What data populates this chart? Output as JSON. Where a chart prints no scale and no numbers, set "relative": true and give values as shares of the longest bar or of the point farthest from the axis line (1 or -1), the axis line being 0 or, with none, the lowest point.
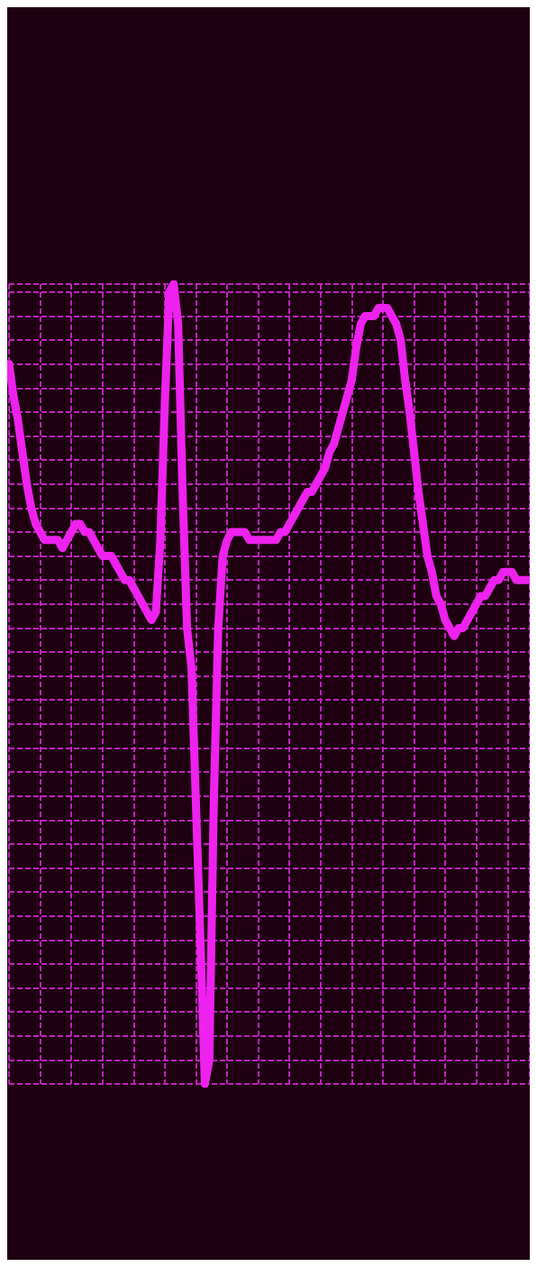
{
  "chart_data": {
    "type": "line",
    "relative": true,
    "grid": true,
    "line_style": "solid",
    "categories": [
      null,
      null,
      null,
      null,
      null,
      null,
      null,
      null,
      null,
      null,
      null,
      null,
      null,
      null,
      null,
      null,
      null,
      null,
      null,
      null,
      null,
      null,
      null,
      null,
      null,
      null,
      null,
      null,
      null,
      null,
      null,
      null,
      null,
      null,
      null,
      null,
      null,
      null,
      null,
      null,
      null,
      null,
      null,
      null,
      null,
      null,
      null,
      null,
      null,
      null,
      null,
      null,
      null,
      null,
      null,
      null,
      null,
      null,
      null,
      null,
      null,
      null,
      null,
      null,
      null,
      null,
      null,
      null,
      null,
      null,
      null,
      null,
      null,
      null,
      null,
      null,
      null,
      null,
      null,
      null,
      null,
      null,
      null,
      null,
      null,
      null,
      null,
      null,
      null,
      null,
      null,
      null,
      null,
      null,
      null,
      null,
      null,
      null,
      null,
      null,
      null,
      null,
      null,
      null,
      null,
      null,
      null,
      null,
      null,
      null,
      null,
      null,
      null,
      null,
      null,
      null,
      null,
      null
    ],
    "series": [
      {
        "color": "#ee22ee",
        "values": [
          0.9,
          0.86,
          0.83,
          0.79,
          0.75,
          0.72,
          0.7,
          0.69,
          0.68,
          0.68,
          0.68,
          0.68,
          0.67,
          0.68,
          0.69,
          0.7,
          0.7,
          0.69,
          0.69,
          0.68,
          0.67,
          0.66,
          0.66,
          0.66,
          0.65,
          0.64,
          0.63,
          0.63,
          0.62,
          0.61,
          0.6,
          0.59,
          0.58,
          0.59,
          0.68,
          0.85,
          0.99,
          1.0,
          0.95,
          0.74,
          0.57,
          0.52,
          0.35,
          0.18,
          0.0,
          0.03,
          0.35,
          0.57,
          0.66,
          0.68,
          0.69,
          0.69,
          0.69,
          0.69,
          0.68,
          0.68,
          0.68,
          0.68,
          0.68,
          0.68,
          0.68,
          0.69,
          0.69,
          0.7,
          0.71,
          0.72,
          0.73,
          0.74,
          0.74,
          0.75,
          0.76,
          0.77,
          0.79,
          0.8,
          0.82,
          0.84,
          0.86,
          0.88,
          0.92,
          0.95,
          0.96,
          0.96,
          0.96,
          0.97,
          0.97,
          0.97,
          0.96,
          0.95,
          0.93,
          0.88,
          0.84,
          0.79,
          0.74,
          0.7,
          0.66,
          0.64,
          0.61,
          0.6,
          0.58,
          0.57,
          0.56,
          0.57,
          0.57,
          0.58,
          0.59,
          0.6,
          0.61,
          0.61,
          0.62,
          0.63,
          0.63,
          0.64,
          0.64,
          0.64,
          0.63,
          0.63,
          0.63,
          0.63
        ]
      }
    ]
  }
}
